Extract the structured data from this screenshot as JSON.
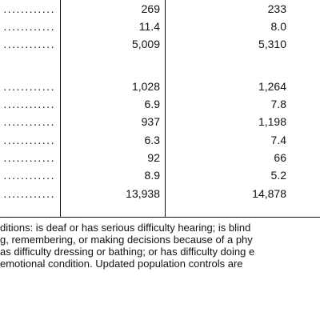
{
  "table": {
    "leader_text": "............",
    "rows": [
      {
        "v1": "269",
        "v2": "233"
      },
      {
        "v1": "11.4",
        "v2": "8.0"
      },
      {
        "v1": "5,009",
        "v2": "5,310"
      },
      {
        "v1": "1,028",
        "v2": "1,264"
      },
      {
        "v1": "6.9",
        "v2": "7.8"
      },
      {
        "v1": "937",
        "v2": "1,198"
      },
      {
        "v1": "6.3",
        "v2": "7.4"
      },
      {
        "v1": "92",
        "v2": "66"
      },
      {
        "v1": "8.9",
        "v2": "5.2"
      },
      {
        "v1": "13,938",
        "v2": "14,878"
      }
    ]
  },
  "footnote": {
    "lines": [
      "ditions: is deaf or has serious difficulty hearing; is blind",
      "g, remembering, or making decisions because of a phy",
      "as difficulty dressing or bathing; or has difficulty doing e",
      "emotional condition. Updated population controls are"
    ]
  }
}
